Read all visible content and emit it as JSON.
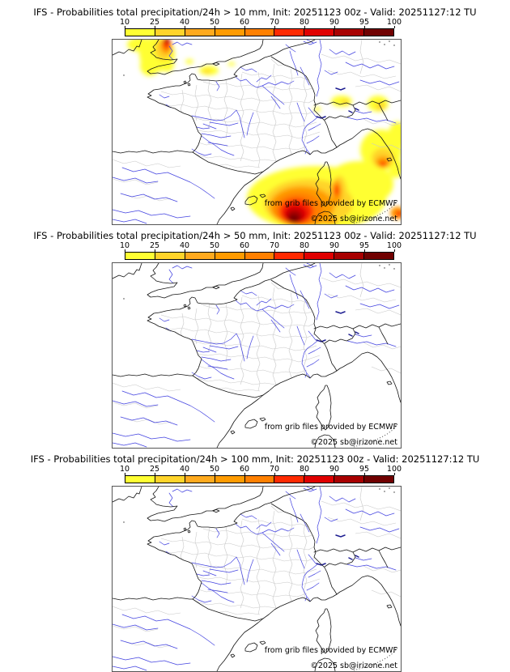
{
  "run": {
    "model": "IFS",
    "init": "20251123 00z",
    "valid": "20251127:12 TU",
    "variable": "Probabilities total precipitation/24h"
  },
  "panels": [
    {
      "title": "IFS - Probabilities total precipitation/24h > 10 mm, Init: 20251123 00z - Valid: 20251127:12 TU",
      "threshold_mm": 10,
      "has_overlay": true,
      "overlay_regions": [
        {
          "area": "Wales / Irish Sea",
          "max_percent": 95
        },
        {
          "area": "English Channel patches",
          "max_percent": 40
        },
        {
          "area": "Alps / N Italy patches",
          "max_percent": 40
        },
        {
          "area": "Ligurian Sea / NW Italy coast",
          "max_percent": 80
        },
        {
          "area": "Gulf of Lion / Balearic Sea",
          "max_percent": 100
        },
        {
          "area": "Corsica east coast",
          "max_percent": 80
        },
        {
          "area": "N Sardinia",
          "max_percent": 60
        }
      ]
    },
    {
      "title": "IFS - Probabilities total precipitation/24h > 50 mm, Init: 20251123 00z - Valid: 20251127:12 TU",
      "threshold_mm": 50,
      "has_overlay": false,
      "overlay_regions": []
    },
    {
      "title": "IFS - Probabilities total precipitation/24h > 100 mm, Init: 20251123 00z - Valid: 20251127:12 TU",
      "threshold_mm": 100,
      "has_overlay": false,
      "overlay_regions": []
    }
  ],
  "colorbar": {
    "unit": "%",
    "ticks": [
      "10",
      "25",
      "40",
      "50",
      "60",
      "70",
      "80",
      "90",
      "95",
      "100"
    ],
    "colors": [
      "#ffff33",
      "#ffd42a",
      "#ffaa1e",
      "#ff9b00",
      "#ff8000",
      "#ff2a00",
      "#e00000",
      "#a80000",
      "#700000"
    ]
  },
  "map": {
    "attribution_line1": "from grib files provided by ECMWF",
    "attribution_line2": "©2025 sb@irizone.net",
    "colors": {
      "river": "#4343e0",
      "lake": "#1c1c90",
      "coast": "#141414",
      "admin": "#c9c9c9",
      "frame": "#555555"
    }
  }
}
